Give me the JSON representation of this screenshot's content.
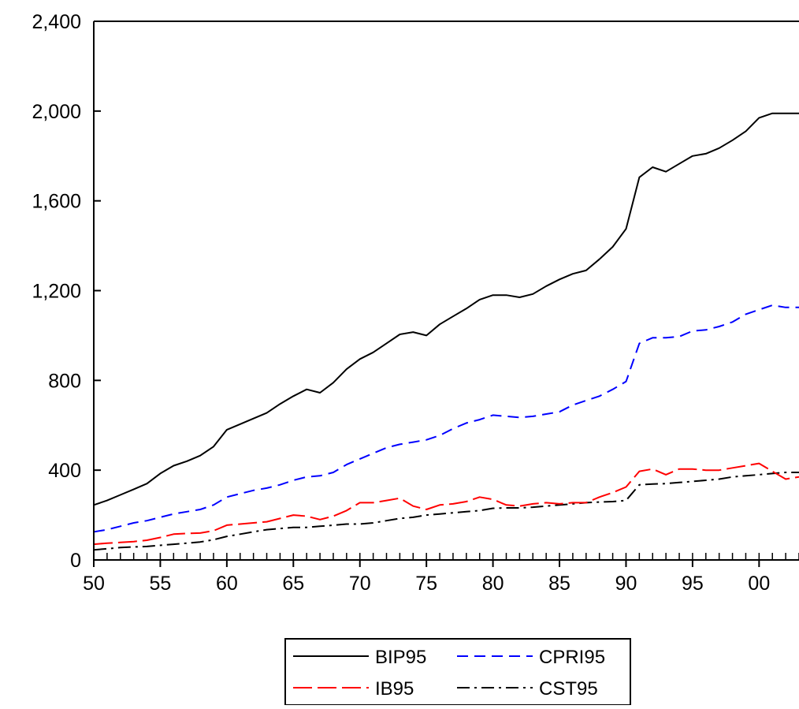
{
  "chart_data": {
    "type": "line",
    "title": "",
    "xlabel": "",
    "ylabel": "",
    "x": [
      1950,
      1951,
      1952,
      1953,
      1954,
      1955,
      1956,
      1957,
      1958,
      1959,
      1960,
      1961,
      1962,
      1963,
      1964,
      1965,
      1966,
      1967,
      1968,
      1969,
      1970,
      1971,
      1972,
      1973,
      1974,
      1975,
      1976,
      1977,
      1978,
      1979,
      1980,
      1981,
      1982,
      1983,
      1984,
      1985,
      1986,
      1987,
      1988,
      1989,
      1990,
      1991,
      1992,
      1993,
      1994,
      1995,
      1996,
      1997,
      1998,
      1999,
      2000,
      2001,
      2002,
      2003
    ],
    "xlim": [
      1950,
      2003
    ],
    "ylim": [
      0,
      2400
    ],
    "x_ticks": [
      {
        "value": 1950,
        "label": "50"
      },
      {
        "value": 1955,
        "label": "55"
      },
      {
        "value": 1960,
        "label": "60"
      },
      {
        "value": 1965,
        "label": "65"
      },
      {
        "value": 1970,
        "label": "70"
      },
      {
        "value": 1975,
        "label": "75"
      },
      {
        "value": 1980,
        "label": "80"
      },
      {
        "value": 1985,
        "label": "85"
      },
      {
        "value": 1990,
        "label": "90"
      },
      {
        "value": 1995,
        "label": "95"
      },
      {
        "value": 2000,
        "label": "00"
      }
    ],
    "y_ticks": [
      {
        "value": 0,
        "label": "0"
      },
      {
        "value": 400,
        "label": "400"
      },
      {
        "value": 800,
        "label": "800"
      },
      {
        "value": 1200,
        "label": "1,200"
      },
      {
        "value": 1600,
        "label": "1,600"
      },
      {
        "value": 2000,
        "label": "2,000"
      },
      {
        "value": 2400,
        "label": "2,400"
      }
    ],
    "grid": false,
    "legend_position": "bottom-center",
    "series": [
      {
        "name": "BIP95",
        "color": "#000000",
        "dash": "solid",
        "values": [
          245,
          265,
          290,
          315,
          340,
          385,
          420,
          440,
          465,
          505,
          580,
          605,
          630,
          655,
          695,
          730,
          760,
          745,
          790,
          850,
          895,
          925,
          965,
          1005,
          1015,
          1000,
          1050,
          1085,
          1120,
          1160,
          1180,
          1180,
          1170,
          1185,
          1220,
          1250,
          1275,
          1290,
          1340,
          1395,
          1475,
          1705,
          1750,
          1730,
          1765,
          1800,
          1810,
          1835,
          1870,
          1910,
          1970,
          1990,
          1990,
          1990
        ]
      },
      {
        "name": "CPRI95",
        "color": "#0000ff",
        "dash": "dashed",
        "values": [
          125,
          135,
          150,
          165,
          175,
          190,
          205,
          215,
          225,
          245,
          280,
          295,
          310,
          320,
          335,
          355,
          370,
          375,
          390,
          425,
          450,
          475,
          500,
          515,
          525,
          535,
          555,
          585,
          610,
          625,
          645,
          640,
          635,
          640,
          650,
          660,
          690,
          710,
          730,
          760,
          795,
          965,
          990,
          990,
          995,
          1020,
          1025,
          1040,
          1060,
          1095,
          1115,
          1135,
          1125,
          1125
        ]
      },
      {
        "name": "IB95",
        "color": "#ff0000",
        "dash": "longdash",
        "values": [
          70,
          75,
          78,
          82,
          88,
          100,
          115,
          118,
          120,
          130,
          155,
          160,
          165,
          170,
          185,
          200,
          195,
          180,
          195,
          220,
          255,
          255,
          265,
          275,
          240,
          225,
          245,
          250,
          260,
          280,
          270,
          245,
          240,
          250,
          255,
          250,
          255,
          255,
          280,
          300,
          325,
          395,
          405,
          380,
          405,
          405,
          400,
          400,
          410,
          420,
          430,
          395,
          360,
          370
        ]
      },
      {
        "name": "CST95",
        "color": "#000000",
        "dash": "dashdot",
        "values": [
          45,
          50,
          55,
          58,
          60,
          65,
          70,
          75,
          80,
          90,
          105,
          115,
          125,
          135,
          140,
          145,
          145,
          150,
          155,
          160,
          160,
          165,
          175,
          185,
          190,
          200,
          205,
          210,
          215,
          220,
          230,
          232,
          232,
          235,
          240,
          245,
          250,
          255,
          258,
          260,
          265,
          335,
          338,
          340,
          345,
          350,
          355,
          360,
          370,
          375,
          380,
          385,
          390,
          390
        ]
      }
    ]
  }
}
